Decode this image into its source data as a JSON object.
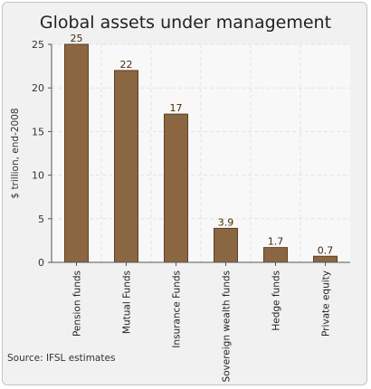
{
  "source_note": "Source: IFSL estimates",
  "chart_data": {
    "type": "bar",
    "title": "Global assets under management",
    "ylabel": "$ trillion, end-2008",
    "xlabel": "",
    "categories": [
      "Pension funds",
      "Mutual Funds",
      "Insurance Funds",
      "Sovereign wealth funds",
      "Hedge funds",
      "Private equity"
    ],
    "values": [
      25,
      22,
      17,
      3.9,
      1.7,
      0.7
    ],
    "value_labels": [
      "25",
      "22",
      "17",
      "3.9",
      "1.7",
      "0.7"
    ],
    "ylim": [
      0,
      25
    ],
    "yticks": [
      "0",
      "5",
      "10",
      "15",
      "20",
      "25"
    ],
    "grid": true,
    "legend": "none",
    "colors": {
      "bar_fill": "#8b6642",
      "bar_stroke": "#5e4024",
      "plot_background": "#f8f8f8",
      "grid": "#e2e2e2",
      "axis": "#555555"
    }
  }
}
